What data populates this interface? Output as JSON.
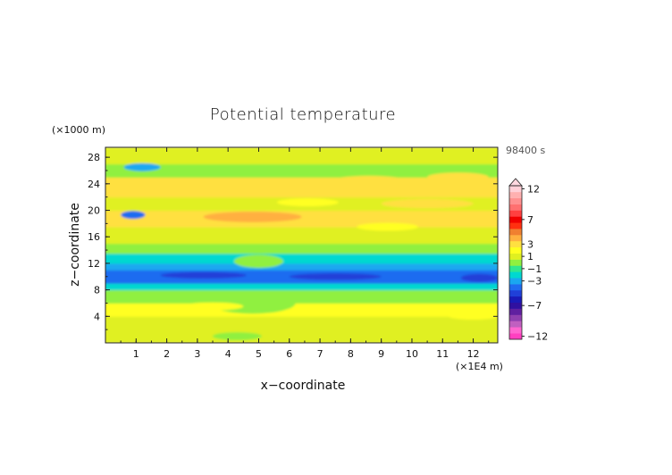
{
  "chart_data": {
    "type": "heatmap",
    "title": "Potential temperature",
    "xlabel": "x−coordinate",
    "ylabel": "z−coordinate",
    "x_unit": "(×1E4 m)",
    "y_unit": "(×1000 m)",
    "time_label": "98400 s",
    "xlim": [
      0,
      12.8
    ],
    "ylim": [
      0,
      29.5
    ],
    "x_ticks": [
      "1",
      "2",
      "3",
      "4",
      "5",
      "6",
      "7",
      "8",
      "9",
      "10",
      "11",
      "12"
    ],
    "y_ticks": [
      "4",
      "8",
      "12",
      "16",
      "20",
      "24",
      "28"
    ],
    "colorbar": {
      "levels": [
        -12,
        -11,
        -10,
        -9,
        -8,
        -7,
        -6,
        -5,
        -4,
        -3,
        -2,
        -1,
        0,
        1,
        2,
        3,
        4,
        5,
        6,
        7,
        8,
        9,
        10,
        11,
        12
      ],
      "tick_labels": [
        "12",
        "7",
        "3",
        "1",
        "−1",
        "−3",
        "−7",
        "−12"
      ],
      "colors": [
        "#ff40c0",
        "#ff66d0",
        "#c060c0",
        "#9040b0",
        "#6020a0",
        "#3010a0",
        "#1a1ab8",
        "#2040d8",
        "#1f6cf0",
        "#1aa8f0",
        "#00d8d0",
        "#30e890",
        "#90f040",
        "#e0f020",
        "#ffff20",
        "#ffe040",
        "#ffb040",
        "#f08030",
        "#ff3010",
        "#f00000",
        "#ff4040",
        "#ff7070",
        "#ff9090",
        "#ffb0b0",
        "#ffd0d8"
      ]
    },
    "bands": [
      {
        "z_min": 0,
        "z_max": 1.5,
        "value": 0.5
      },
      {
        "z_min": 1.5,
        "z_max": 4,
        "value": 1
      },
      {
        "z_min": 4,
        "z_max": 6,
        "value": 2
      },
      {
        "z_min": 6,
        "z_max": 8,
        "value": 0
      },
      {
        "z_min": 8,
        "z_max": 9,
        "value": -2
      },
      {
        "z_min": 9,
        "z_max": 11,
        "value": -4
      },
      {
        "z_min": 11,
        "z_max": 12,
        "value": -3
      },
      {
        "z_min": 12,
        "z_max": 13.5,
        "value": -2
      },
      {
        "z_min": 13.5,
        "z_max": 15,
        "value": 0
      },
      {
        "z_min": 15,
        "z_max": 17.5,
        "value": 1
      },
      {
        "z_min": 17.5,
        "z_max": 20,
        "value": 3
      },
      {
        "z_min": 20,
        "z_max": 22,
        "value": 1
      },
      {
        "z_min": 22,
        "z_max": 25,
        "value": 3
      },
      {
        "z_min": 25,
        "z_max": 27,
        "value": 0
      },
      {
        "z_min": 27,
        "z_max": 29.5,
        "value": 1
      }
    ],
    "features": [
      {
        "x": 1.2,
        "z": 26.5,
        "rx": 0.6,
        "rz": 0.6,
        "value": -3
      },
      {
        "x": 0.9,
        "z": 19.3,
        "rx": 0.4,
        "rz": 0.6,
        "value": -4
      },
      {
        "x": 4.8,
        "z": 19.0,
        "rx": 1.6,
        "rz": 0.8,
        "value": 4
      },
      {
        "x": 3.0,
        "z": 23.5,
        "rx": 1.5,
        "rz": 0.8,
        "value": 3
      },
      {
        "x": 8.6,
        "z": 24.5,
        "rx": 1.2,
        "rz": 0.7,
        "value": 3
      },
      {
        "x": 11.5,
        "z": 25.0,
        "rx": 1.0,
        "rz": 0.7,
        "value": 3
      },
      {
        "x": 10.5,
        "z": 21.0,
        "rx": 1.5,
        "rz": 0.7,
        "value": 3
      },
      {
        "x": 6.6,
        "z": 21.2,
        "rx": 1.0,
        "rz": 0.6,
        "value": 2
      },
      {
        "x": 9.2,
        "z": 17.5,
        "rx": 1.0,
        "rz": 0.6,
        "value": 2
      },
      {
        "x": 5.0,
        "z": 12.3,
        "rx": 0.8,
        "rz": 1.0,
        "value": 0
      },
      {
        "x": 7.5,
        "z": 10.0,
        "rx": 1.5,
        "rz": 0.5,
        "value": -5
      },
      {
        "x": 3.2,
        "z": 10.2,
        "rx": 1.4,
        "rz": 0.5,
        "value": -5
      },
      {
        "x": 12.2,
        "z": 9.8,
        "rx": 0.6,
        "rz": 0.6,
        "value": -5
      },
      {
        "x": 4.8,
        "z": 6.0,
        "rx": 1.4,
        "rz": 1.6,
        "value": 0
      },
      {
        "x": 3.5,
        "z": 5.5,
        "rx": 1.0,
        "rz": 0.6,
        "value": 2
      },
      {
        "x": 7.0,
        "z": 4.5,
        "rx": 0.8,
        "rz": 0.5,
        "value": 2
      },
      {
        "x": 9.5,
        "z": 5.0,
        "rx": 1.2,
        "rz": 0.6,
        "value": 2
      },
      {
        "x": 12.0,
        "z": 4.0,
        "rx": 0.8,
        "rz": 0.5,
        "value": 2
      },
      {
        "x": 4.3,
        "z": 1.0,
        "rx": 0.8,
        "rz": 0.6,
        "value": 0
      }
    ]
  }
}
